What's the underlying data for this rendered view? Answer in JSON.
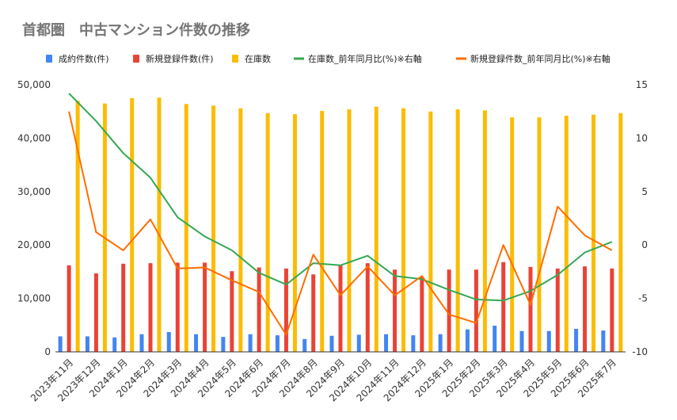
{
  "chart_data": {
    "type": "bar",
    "title": "首都圏　中古マンション件数の推移",
    "categories": [
      "2023年11月",
      "2023年12月",
      "2024年1月",
      "2024年2月",
      "2024年3月",
      "2024年4月",
      "2024年5月",
      "2024年6月",
      "2024年7月",
      "2024年8月",
      "2024年9月",
      "2024年10月",
      "2024年11月",
      "2024年12月",
      "2025年1月",
      "2025年2月",
      "2025年3月",
      "2025年4月",
      "2025年5月",
      "2025年6月",
      "2025年7月"
    ],
    "series": [
      {
        "name": "成約件数(件)",
        "type": "bar",
        "axis": "left",
        "color": "#4285f4",
        "values": [
          2900,
          2900,
          2700,
          3300,
          3700,
          3300,
          2800,
          3300,
          3100,
          2400,
          3000,
          3200,
          3300,
          3100,
          3300,
          4200,
          4900,
          3900,
          3900,
          4300,
          4000
        ]
      },
      {
        "name": "新規登録件数(件)",
        "type": "bar",
        "axis": "left",
        "color": "#ea4335",
        "values": [
          16200,
          14700,
          16500,
          16600,
          16700,
          16700,
          15100,
          15800,
          15600,
          14500,
          16200,
          16600,
          15400,
          14000,
          15400,
          15400,
          16800,
          15900,
          15600,
          16000,
          15600
        ]
      },
      {
        "name": "在庫数",
        "type": "bar",
        "axis": "left",
        "color": "#fbbc04",
        "values": [
          47000,
          46500,
          47500,
          47600,
          46400,
          46100,
          45600,
          44700,
          44500,
          45100,
          45400,
          45900,
          45600,
          45000,
          45400,
          45200,
          43900,
          43900,
          44200,
          44400,
          44700
        ]
      },
      {
        "name": "在庫数_前年同月比(%)※右軸",
        "type": "line",
        "axis": "right",
        "color": "#34a853",
        "values": [
          14.2,
          11.6,
          8.6,
          6.3,
          2.6,
          0.8,
          -0.5,
          -2.6,
          -3.7,
          -1.7,
          -1.9,
          -1.0,
          -2.9,
          -3.2,
          -4.2,
          -5.1,
          -5.2,
          -4.3,
          -2.8,
          -0.7,
          0.3
        ]
      },
      {
        "name": "新規登録件数_前年同月比(%)※右軸",
        "type": "line",
        "axis": "right",
        "color": "#ff6d01",
        "values": [
          12.5,
          1.2,
          -0.5,
          2.4,
          -2.2,
          -2.1,
          -3.3,
          -4.4,
          -8.4,
          -0.9,
          -4.7,
          -2.0,
          -4.7,
          -2.9,
          -6.5,
          -7.3,
          0.0,
          -5.6,
          3.6,
          0.9,
          -0.5
        ]
      }
    ],
    "y_left": {
      "min": 0,
      "max": 50000,
      "ticks": [
        "0",
        "10,000",
        "20,000",
        "30,000",
        "40,000",
        "50,000"
      ]
    },
    "y_right": {
      "min": -10,
      "max": 15,
      "ticks": [
        "-10",
        "-5",
        "0",
        "5",
        "10",
        "15"
      ]
    },
    "legend_position": "top",
    "grid": false
  }
}
